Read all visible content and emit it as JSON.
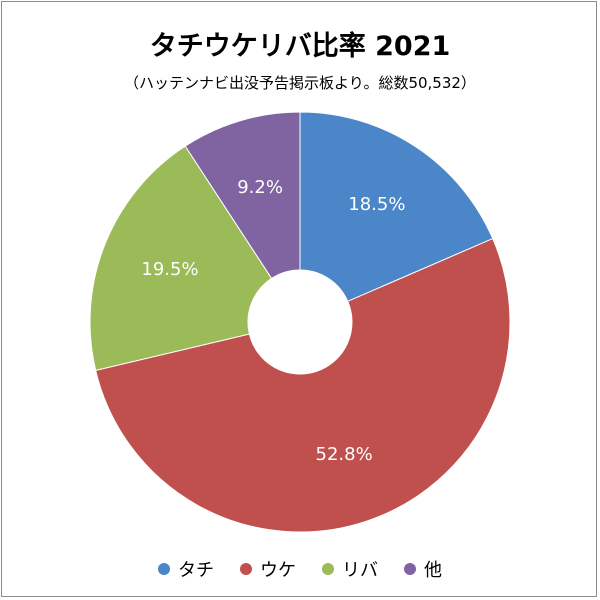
{
  "chart_data": {
    "type": "pie",
    "style": "donut",
    "title": "タチウケリバ比率  2021",
    "subtitle": "（ハッテンナビ出没予告掲示板より。総数50,532）",
    "categories": [
      "タチ",
      "ウケ",
      "リバ",
      "他"
    ],
    "values": [
      18.5,
      52.8,
      19.5,
      9.2
    ],
    "labels": [
      "18.5%",
      "52.8%",
      "19.5%",
      "9.2%"
    ],
    "colors": [
      "#4a86c8",
      "#c0504d",
      "#9bbb59",
      "#8064a2"
    ],
    "legend_position": "bottom"
  }
}
